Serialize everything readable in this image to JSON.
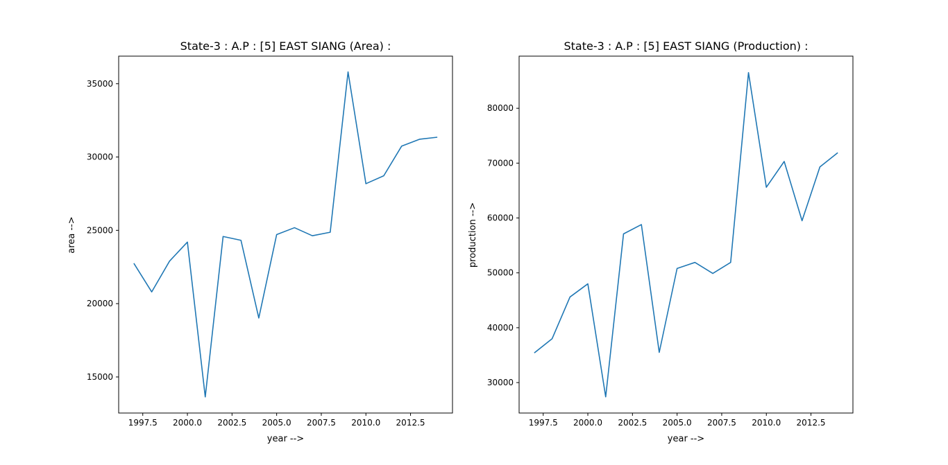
{
  "figure": {
    "line_color": "#1f77b4",
    "background": "#ffffff"
  },
  "chart_data": [
    {
      "type": "line",
      "title": "State-3 : A.P : [5] EAST SIANG (Area) :",
      "xlabel": "year -->",
      "ylabel": "area -->",
      "xlim": [
        1996.15,
        2014.85
      ],
      "ylim": [
        12540,
        36880
      ],
      "xticks": [
        1997.5,
        2000.0,
        2002.5,
        2005.0,
        2007.5,
        2010.0,
        2012.5
      ],
      "xtick_labels": [
        "1997.5",
        "2000.0",
        "2002.5",
        "2005.0",
        "2007.5",
        "2010.0",
        "2012.5"
      ],
      "yticks": [
        15000,
        20000,
        25000,
        30000,
        35000
      ],
      "ytick_labels": [
        "15000",
        "20000",
        "25000",
        "30000",
        "35000"
      ],
      "grid": false,
      "series": [
        {
          "x": [
            1997,
            1998,
            1999,
            2000,
            2001,
            2002,
            2003,
            2004,
            2005,
            2006,
            2007,
            2008,
            2009,
            2010,
            2011,
            2012,
            2013,
            2014
          ],
          "y": [
            22750,
            20800,
            22900,
            24200,
            13640,
            24580,
            24320,
            19020,
            24710,
            25180,
            24630,
            24870,
            35800,
            28180,
            28720,
            30740,
            31210,
            31350
          ]
        }
      ]
    },
    {
      "type": "line",
      "title": "State-3 : A.P : [5] EAST SIANG (Production) :",
      "xlabel": "year -->",
      "ylabel": "production -->",
      "xlim": [
        1996.15,
        2014.85
      ],
      "ylim": [
        24450,
        89500
      ],
      "xticks": [
        1997.5,
        2000.0,
        2002.5,
        2005.0,
        2007.5,
        2010.0,
        2012.5
      ],
      "xtick_labels": [
        "1997.5",
        "2000.0",
        "2002.5",
        "2005.0",
        "2007.5",
        "2010.0",
        "2012.5"
      ],
      "yticks": [
        30000,
        40000,
        50000,
        60000,
        70000,
        80000
      ],
      "ytick_labels": [
        "30000",
        "40000",
        "50000",
        "60000",
        "70000",
        "80000"
      ],
      "grid": false,
      "series": [
        {
          "x": [
            1997,
            1998,
            1999,
            2000,
            2001,
            2002,
            2003,
            2004,
            2005,
            2006,
            2007,
            2008,
            2009,
            2010,
            2011,
            2012,
            2013,
            2014
          ],
          "y": [
            35400,
            38000,
            45600,
            48000,
            27400,
            57100,
            58800,
            35500,
            50800,
            51900,
            49900,
            51900,
            86500,
            65600,
            70300,
            59500,
            69300,
            71900
          ]
        }
      ]
    }
  ]
}
